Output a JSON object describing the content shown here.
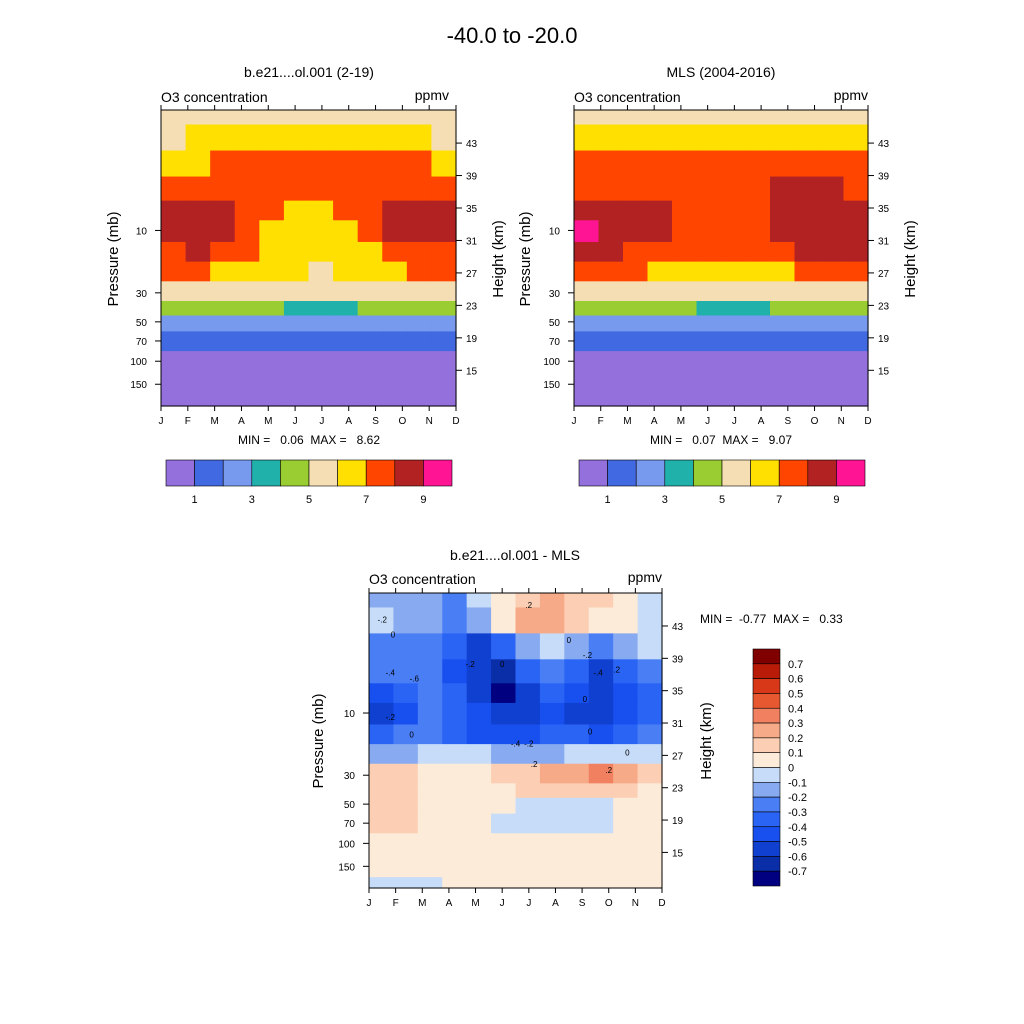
{
  "figure": {
    "title": "-40.0 to -20.0"
  },
  "chart_data": [
    {
      "type": "heatmap",
      "title": "b.e21....ol.001 (2-19)",
      "left_string": "O3 concentration",
      "right_string": "ppmv",
      "ylabel": "Pressure (mb)",
      "ylabel_right": "Height (km)",
      "x_ticks": [
        "J",
        "F",
        "M",
        "A",
        "M",
        "J",
        "J",
        "A",
        "S",
        "O",
        "N",
        "D"
      ],
      "y_pressure_ticks": [
        {
          "value": 10,
          "label": "10"
        },
        {
          "value": 30,
          "label": "30"
        },
        {
          "value": 50,
          "label": "50"
        },
        {
          "value": 70,
          "label": "70"
        },
        {
          "value": 100,
          "label": "100"
        },
        {
          "value": 150,
          "label": "150"
        }
      ],
      "y_height_ticks": [
        "43",
        "39",
        "35",
        "31",
        "27",
        "23",
        "19",
        "15"
      ],
      "y_height_values": [
        43,
        39,
        35,
        31,
        27,
        23,
        19,
        15
      ],
      "stats": "MIN =   0.06  MAX =   8.62",
      "pressure_levels": [
        1.2,
        2,
        3,
        5,
        7,
        10,
        15,
        20,
        30,
        40,
        50,
        70,
        100,
        150,
        220
      ],
      "values": [
        [
          5.1,
          5.2,
          5.4,
          5.6,
          5.7,
          5.8,
          5.8,
          5.7,
          5.6,
          5.4,
          5.2,
          5.1
        ],
        [
          5.9,
          6.0,
          6.2,
          6.4,
          6.5,
          6.5,
          6.5,
          6.4,
          6.3,
          6.2,
          6.0,
          5.9
        ],
        [
          6.8,
          6.9,
          7.0,
          7.1,
          7.2,
          7.1,
          7.1,
          7.1,
          7.1,
          7.1,
          7.0,
          6.9
        ],
        [
          7.8,
          7.8,
          7.7,
          7.6,
          7.5,
          7.4,
          7.4,
          7.5,
          7.7,
          7.8,
          7.9,
          7.8
        ],
        [
          8.3,
          8.4,
          8.2,
          7.6,
          7.2,
          6.9,
          6.8,
          7.0,
          7.5,
          8.1,
          8.4,
          8.3
        ],
        [
          8.4,
          8.5,
          8.3,
          7.5,
          6.8,
          6.4,
          6.3,
          6.5,
          7.2,
          8.0,
          8.3,
          8.2
        ],
        [
          7.9,
          8.0,
          7.5,
          7.0,
          6.6,
          6.1,
          6.0,
          6.3,
          6.8,
          7.3,
          7.7,
          7.8
        ],
        [
          7.2,
          7.1,
          6.8,
          6.5,
          6.2,
          6.0,
          5.9,
          6.1,
          6.5,
          6.8,
          7.0,
          7.1
        ],
        [
          5.4,
          5.5,
          5.5,
          5.5,
          5.4,
          5.3,
          5.3,
          5.3,
          5.4,
          5.4,
          5.4,
          5.4
        ],
        [
          4.3,
          4.3,
          4.2,
          4.2,
          4.0,
          3.8,
          3.7,
          3.8,
          4.0,
          4.1,
          4.2,
          4.3
        ],
        [
          2.9,
          2.8,
          2.8,
          2.7,
          2.6,
          2.4,
          2.3,
          2.3,
          2.4,
          2.6,
          2.7,
          2.8
        ],
        [
          1.9,
          1.8,
          1.8,
          1.7,
          1.6,
          1.5,
          1.4,
          1.4,
          1.5,
          1.6,
          1.7,
          1.8
        ],
        [
          0.9,
          0.9,
          0.8,
          0.8,
          0.8,
          0.8,
          0.7,
          0.7,
          0.7,
          0.8,
          0.8,
          0.9
        ],
        [
          0.5,
          0.5,
          0.5,
          0.5,
          0.5,
          0.4,
          0.4,
          0.4,
          0.4,
          0.4,
          0.5,
          0.5
        ],
        [
          0.2,
          0.2,
          0.2,
          0.2,
          0.2,
          0.2,
          0.2,
          0.2,
          0.2,
          0.2,
          0.2,
          0.2
        ]
      ],
      "levels": [
        1,
        2,
        3,
        4,
        5,
        6,
        7,
        8,
        9
      ],
      "colors": [
        "#9370DB",
        "#4169E1",
        "#7799EE",
        "#20B2AA",
        "#9ACD32",
        "#F5DEB3",
        "#FFE000",
        "#FF4500",
        "#B22222",
        "#FF1493"
      ],
      "colorbar": {
        "labels": [
          "1",
          "3",
          "5",
          "7",
          "9"
        ],
        "label_values": [
          1,
          3,
          5,
          7,
          9
        ]
      }
    },
    {
      "type": "heatmap",
      "title": "MLS (2004-2016)",
      "left_string": "O3 concentration",
      "right_string": "ppmv",
      "ylabel": "Pressure (mb)",
      "ylabel_right": "Height (km)",
      "x_ticks": [
        "J",
        "F",
        "M",
        "A",
        "M",
        "J",
        "J",
        "A",
        "S",
        "O",
        "N",
        "D"
      ],
      "y_pressure_ticks": [
        {
          "value": 10,
          "label": "10"
        },
        {
          "value": 30,
          "label": "30"
        },
        {
          "value": 50,
          "label": "50"
        },
        {
          "value": 70,
          "label": "70"
        },
        {
          "value": 100,
          "label": "100"
        },
        {
          "value": 150,
          "label": "150"
        }
      ],
      "y_height_ticks": [
        "43",
        "39",
        "35",
        "31",
        "27",
        "23",
        "19",
        "15"
      ],
      "y_height_values": [
        43,
        39,
        35,
        31,
        27,
        23,
        19,
        15
      ],
      "stats": "MIN =   0.07  MAX =   9.07",
      "pressure_levels": [
        1.2,
        2,
        3,
        5,
        7,
        10,
        15,
        20,
        30,
        40,
        50,
        70,
        100,
        150,
        220
      ],
      "values": [
        [
          5.0,
          5.1,
          5.3,
          5.5,
          5.6,
          5.7,
          5.7,
          5.6,
          5.5,
          5.3,
          5.1,
          5.0
        ],
        [
          6.0,
          6.1,
          6.3,
          6.5,
          6.6,
          6.6,
          6.6,
          6.5,
          6.4,
          6.3,
          6.1,
          6.0
        ],
        [
          7.3,
          7.3,
          7.3,
          7.4,
          7.5,
          7.6,
          7.7,
          7.7,
          7.6,
          7.5,
          7.4,
          7.3
        ],
        [
          7.9,
          7.9,
          7.8,
          7.8,
          7.7,
          7.7,
          7.8,
          7.9,
          8.0,
          8.2,
          8.1,
          7.9
        ],
        [
          8.5,
          8.4,
          8.2,
          8.0,
          7.8,
          7.7,
          7.7,
          7.9,
          8.3,
          8.5,
          8.6,
          8.5
        ],
        [
          9.0,
          8.6,
          8.3,
          8.0,
          7.8,
          7.7,
          7.7,
          7.9,
          8.3,
          8.6,
          8.6,
          8.5
        ],
        [
          8.3,
          8.2,
          7.8,
          7.5,
          7.3,
          7.2,
          7.2,
          7.4,
          7.7,
          8.0,
          8.2,
          8.1
        ],
        [
          7.4,
          7.3,
          7.1,
          6.9,
          6.7,
          6.6,
          6.6,
          6.7,
          6.9,
          7.1,
          7.2,
          7.3
        ],
        [
          5.5,
          5.5,
          5.5,
          5.4,
          5.4,
          5.4,
          5.4,
          5.4,
          5.4,
          5.4,
          5.4,
          5.5
        ],
        [
          4.5,
          4.5,
          4.4,
          4.3,
          4.1,
          3.9,
          3.8,
          3.9,
          4.1,
          4.3,
          4.4,
          4.5
        ],
        [
          2.9,
          2.9,
          2.8,
          2.8,
          2.7,
          2.5,
          2.4,
          2.4,
          2.5,
          2.7,
          2.8,
          2.9
        ],
        [
          1.9,
          1.9,
          1.8,
          1.8,
          1.7,
          1.6,
          1.5,
          1.5,
          1.6,
          1.7,
          1.8,
          1.9
        ],
        [
          0.9,
          0.9,
          0.9,
          0.8,
          0.8,
          0.8,
          0.8,
          0.8,
          0.8,
          0.8,
          0.9,
          0.9
        ],
        [
          0.5,
          0.5,
          0.5,
          0.5,
          0.5,
          0.4,
          0.4,
          0.4,
          0.4,
          0.4,
          0.5,
          0.5
        ],
        [
          0.2,
          0.2,
          0.2,
          0.2,
          0.2,
          0.2,
          0.2,
          0.2,
          0.2,
          0.2,
          0.2,
          0.2
        ]
      ],
      "levels": [
        1,
        2,
        3,
        4,
        5,
        6,
        7,
        8,
        9
      ],
      "colors": [
        "#9370DB",
        "#4169E1",
        "#7799EE",
        "#20B2AA",
        "#9ACD32",
        "#F5DEB3",
        "#FFE000",
        "#FF4500",
        "#B22222",
        "#FF1493"
      ],
      "colorbar": {
        "labels": [
          "1",
          "3",
          "5",
          "7",
          "9"
        ],
        "label_values": [
          1,
          3,
          5,
          7,
          9
        ]
      }
    },
    {
      "type": "heatmap",
      "title": "b.e21....ol.001 - MLS",
      "left_string": "O3 concentration",
      "right_string": "ppmv",
      "ylabel": "Pressure (mb)",
      "ylabel_right": "Height (km)",
      "x_ticks": [
        "J",
        "F",
        "M",
        "A",
        "M",
        "J",
        "J",
        "A",
        "S",
        "O",
        "N",
        "D"
      ],
      "y_pressure_ticks": [
        {
          "value": 10,
          "label": "10"
        },
        {
          "value": 30,
          "label": "30"
        },
        {
          "value": 50,
          "label": "50"
        },
        {
          "value": 70,
          "label": "70"
        },
        {
          "value": 100,
          "label": "100"
        },
        {
          "value": 150,
          "label": "150"
        }
      ],
      "y_height_ticks": [
        "43",
        "39",
        "35",
        "31",
        "27",
        "23",
        "19",
        "15"
      ],
      "y_height_values": [
        43,
        39,
        35,
        31,
        27,
        23,
        19,
        15
      ],
      "stats": "MIN =  -0.77  MAX =   0.33",
      "pressure_levels": [
        1.2,
        2,
        3,
        5,
        7,
        10,
        15,
        20,
        30,
        40,
        50,
        70,
        100,
        150,
        220
      ],
      "values": [
        [
          -0.12,
          -0.15,
          -0.2,
          -0.22,
          -0.1,
          0.08,
          0.18,
          0.2,
          0.15,
          0.1,
          0.03,
          -0.05
        ],
        [
          -0.08,
          -0.12,
          -0.2,
          -0.25,
          -0.15,
          0.05,
          0.22,
          0.25,
          0.15,
          0.05,
          0.0,
          -0.05
        ],
        [
          -0.25,
          -0.28,
          -0.3,
          -0.4,
          -0.55,
          -0.4,
          -0.15,
          -0.05,
          -0.12,
          -0.3,
          -0.15,
          -0.1
        ],
        [
          -0.3,
          -0.3,
          -0.3,
          -0.45,
          -0.6,
          -0.7,
          -0.4,
          -0.3,
          -0.4,
          -0.6,
          -0.4,
          -0.3
        ],
        [
          -0.45,
          -0.4,
          -0.3,
          -0.4,
          -0.6,
          -0.75,
          -0.55,
          -0.4,
          -0.5,
          -0.55,
          -0.45,
          -0.35
        ],
        [
          -0.55,
          -0.5,
          -0.3,
          -0.4,
          -0.5,
          -0.6,
          -0.55,
          -0.45,
          -0.55,
          -0.6,
          -0.45,
          -0.35
        ],
        [
          -0.35,
          -0.3,
          -0.3,
          -0.35,
          -0.45,
          -0.5,
          -0.45,
          -0.35,
          -0.4,
          -0.45,
          -0.35,
          -0.25
        ],
        [
          -0.15,
          -0.12,
          -0.1,
          -0.1,
          -0.1,
          -0.12,
          -0.15,
          -0.12,
          -0.1,
          -0.08,
          -0.05,
          -0.05
        ],
        [
          0.12,
          0.1,
          0.08,
          0.05,
          0.05,
          0.1,
          0.15,
          0.2,
          0.25,
          0.3,
          0.2,
          0.1
        ],
        [
          0.15,
          0.1,
          0.05,
          0.05,
          0.03,
          0.08,
          0.1,
          0.12,
          0.15,
          0.15,
          0.1,
          0.05
        ],
        [
          0.18,
          0.15,
          0.08,
          0.05,
          0.02,
          0.0,
          -0.05,
          -0.08,
          -0.08,
          -0.05,
          0.02,
          0.05
        ],
        [
          0.12,
          0.1,
          0.05,
          0.03,
          0.01,
          -0.02,
          -0.05,
          -0.07,
          -0.06,
          -0.03,
          0.0,
          0.03
        ],
        [
          0.05,
          0.04,
          0.03,
          0.02,
          0.01,
          0.01,
          0.02,
          0.02,
          0.02,
          0.01,
          0.02,
          0.03
        ],
        [
          0.02,
          0.02,
          0.02,
          0.02,
          0.01,
          0.01,
          0.02,
          0.02,
          0.02,
          0.02,
          0.02,
          0.02
        ],
        [
          -0.02,
          -0.03,
          -0.02,
          0.01,
          0.02,
          0.03,
          0.04,
          0.04,
          0.04,
          0.03,
          0.02,
          0.01
        ]
      ],
      "levels": [
        -0.7,
        -0.6,
        -0.5,
        -0.4,
        -0.3,
        -0.2,
        -0.1,
        0,
        0.1,
        0.2,
        0.3,
        0.4,
        0.5,
        0.6,
        0.7
      ],
      "colors": [
        "#000080",
        "#0A2DA8",
        "#1040D0",
        "#1850F0",
        "#2A64F5",
        "#4A7EF5",
        "#88AAF0",
        "#C6DCF8",
        "#FDEBD9",
        "#FCCFB4",
        "#F6AA88",
        "#F08060",
        "#E85830",
        "#D83818",
        "#B81C08",
        "#800000"
      ],
      "contour_labels": [
        "0",
        "-.2",
        "-.4",
        "-.6",
        "-.2",
        "0",
        ".2",
        "0",
        "-.2",
        "-.4",
        "0",
        ".2",
        "-.2",
        "0",
        "0",
        ".2",
        "-.4",
        "-.2",
        "0",
        ".2"
      ],
      "colorbar": {
        "labels": [
          "0.7",
          "0.6",
          "0.5",
          "0.4",
          "0.3",
          "0.2",
          "0.1",
          "0",
          "-0.1",
          "-0.2",
          "-0.3",
          "-0.4",
          "-0.5",
          "-0.6",
          "-0.7"
        ],
        "label_values": [
          0.7,
          0.6,
          0.5,
          0.4,
          0.3,
          0.2,
          0.1,
          0,
          -0.1,
          -0.2,
          -0.3,
          -0.4,
          -0.5,
          -0.6,
          -0.7
        ]
      }
    }
  ]
}
